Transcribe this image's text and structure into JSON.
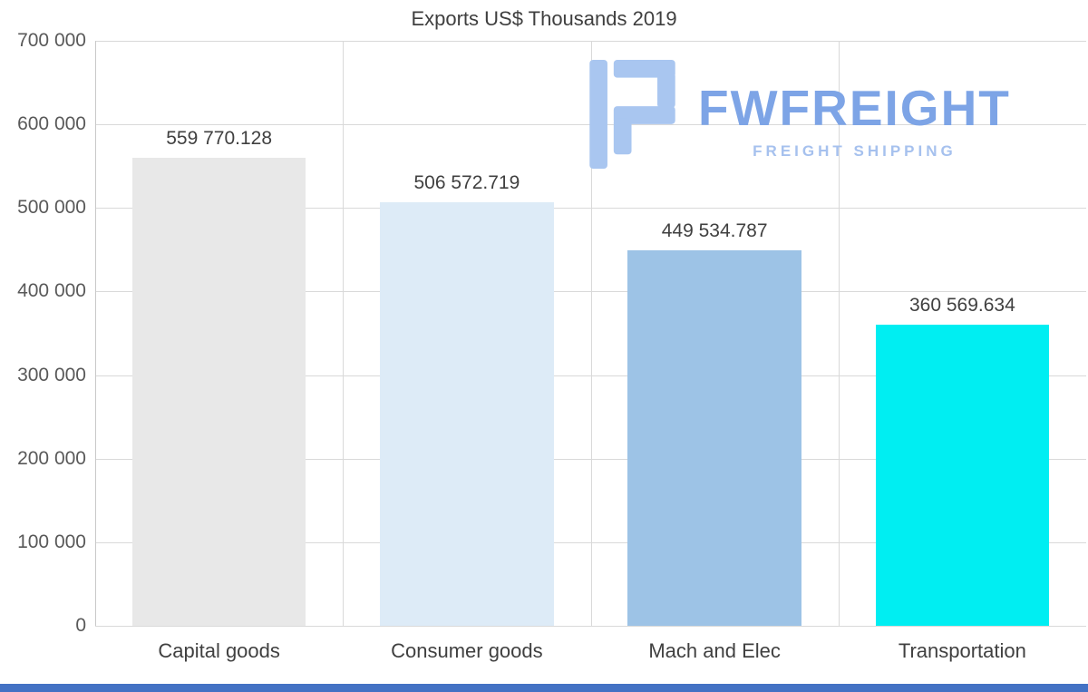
{
  "chart_data": {
    "type": "bar",
    "title": "Exports US$ Thousands 2019",
    "categories": [
      "Capital goods",
      "Consumer goods",
      "Mach and Elec",
      "Transportation"
    ],
    "values": [
      559770.128,
      506572.719,
      449534.787,
      360569.634
    ],
    "value_labels": [
      "559 770.128",
      "506 572.719",
      "449 534.787",
      "360 569.634"
    ],
    "bar_colors": [
      "#e8e8e8",
      "#ddebf7",
      "#9dc3e6",
      "#00eef2"
    ],
    "xlabel": "",
    "ylabel": "",
    "ylim": [
      0,
      700000
    ],
    "ytick_step": 100000,
    "ytick_labels": [
      "0",
      "100 000",
      "200 000",
      "300 000",
      "400 000",
      "500 000",
      "600 000",
      "700 000"
    ],
    "grid": true,
    "legend": false,
    "gridline_color": "#d9d9d9",
    "text_color": "#404040",
    "tick_color": "#595959"
  },
  "watermark": {
    "brand": "FWFREIGHT",
    "tagline": "FREIGHT SHIPPING",
    "brand_color": "#7da4e6",
    "tagline_color": "#a6c1ee",
    "icon": "fwfreight-logo-icon",
    "icon_color": "#a9c6f0"
  },
  "footer": {
    "strip_color": "#4472c4"
  }
}
